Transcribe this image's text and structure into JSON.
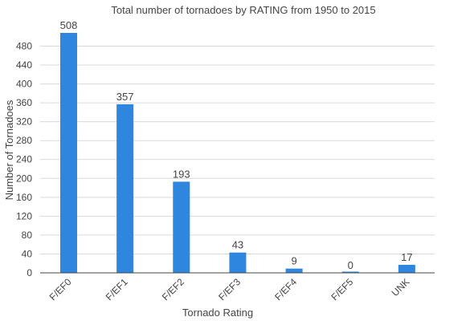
{
  "chart_data": {
    "type": "bar",
    "title": "Total number of tornadoes by RATING from 1950 to 2015",
    "xlabel": "Tornado Rating",
    "ylabel": "Number of Tornadoes",
    "categories": [
      "F/EF0",
      "F/EF1",
      "F/EF2",
      "F/EF3",
      "F/EF4",
      "F/EF5",
      "UNK"
    ],
    "values": [
      508,
      357,
      193,
      43,
      9,
      0,
      17
    ],
    "ylim": [
      0,
      508
    ],
    "yticks": [
      0,
      40,
      80,
      120,
      160,
      200,
      240,
      280,
      320,
      360,
      400,
      440,
      480
    ],
    "grid": true,
    "bar_color": "#2e86de"
  }
}
